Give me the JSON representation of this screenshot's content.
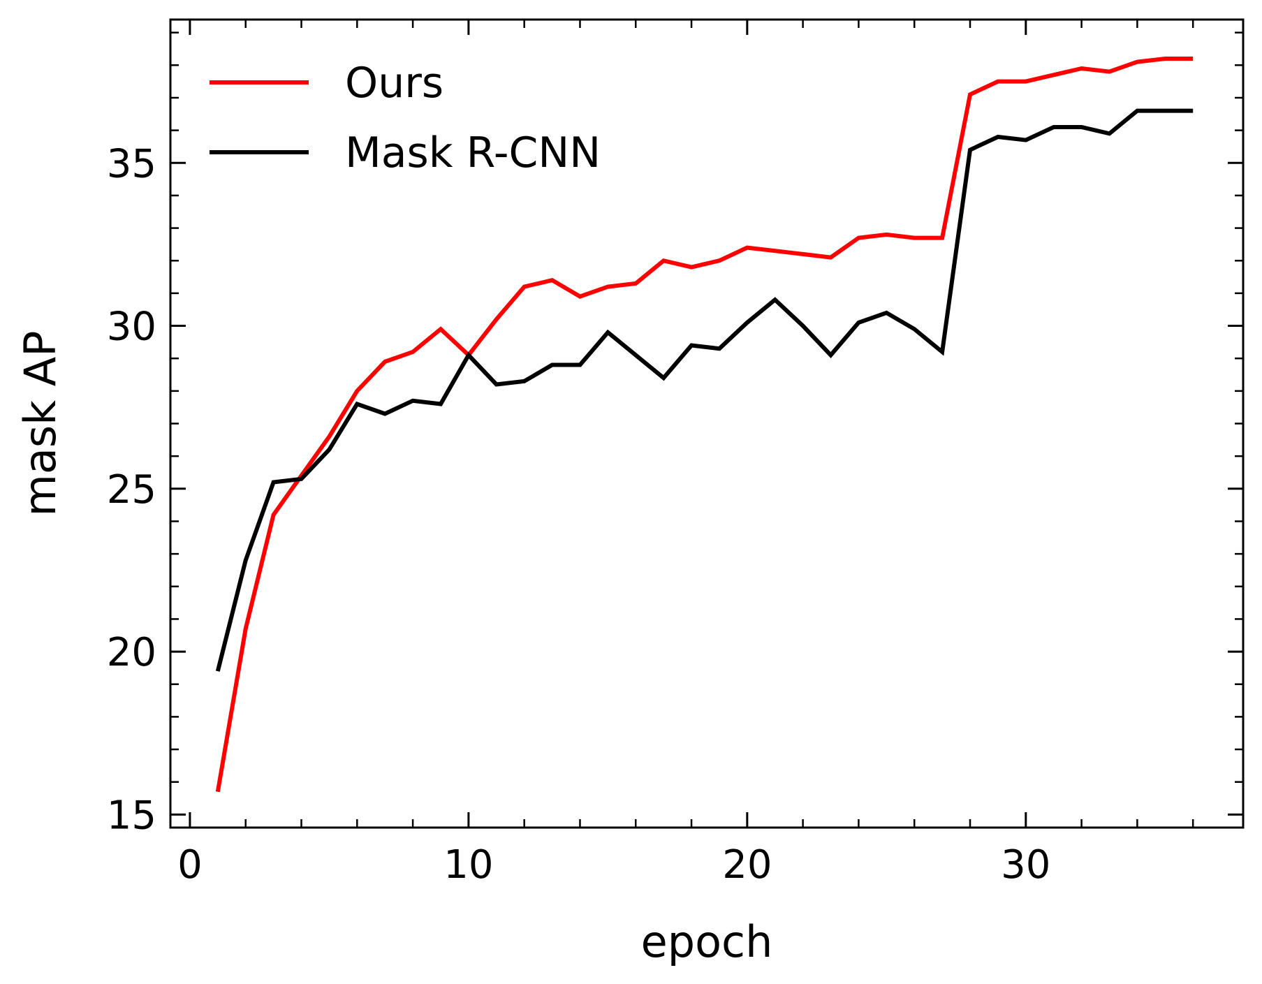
{
  "chart_data": {
    "type": "line",
    "xlabel": "epoch",
    "ylabel": "mask AP",
    "xlim": [
      -0.7,
      37.8
    ],
    "ylim": [
      14.6,
      39.4
    ],
    "x_ticks": [
      0,
      10,
      20,
      30
    ],
    "y_ticks": [
      15,
      20,
      25,
      30,
      35
    ],
    "x_minor_step": 2,
    "y_minor_step": 1,
    "grid": false,
    "legend_position": "top-left",
    "x": [
      1,
      2,
      3,
      4,
      5,
      6,
      7,
      8,
      9,
      10,
      11,
      12,
      13,
      14,
      15,
      16,
      17,
      18,
      19,
      20,
      21,
      22,
      23,
      24,
      25,
      26,
      27,
      28,
      29,
      30,
      31,
      32,
      33,
      34,
      35,
      36
    ],
    "series": [
      {
        "name": "Ours",
        "color": "#ff0000",
        "values": [
          15.7,
          20.7,
          24.2,
          25.4,
          26.6,
          28.0,
          28.9,
          29.2,
          29.9,
          29.1,
          30.2,
          31.2,
          31.4,
          30.9,
          31.2,
          31.3,
          32.0,
          31.8,
          32.0,
          32.4,
          32.3,
          32.2,
          32.1,
          32.7,
          32.8,
          32.7,
          32.7,
          37.1,
          37.5,
          37.5,
          37.7,
          37.9,
          37.8,
          38.1,
          38.2,
          38.2
        ]
      },
      {
        "name": "Mask R-CNN",
        "color": "#000000",
        "values": [
          19.4,
          22.8,
          25.2,
          25.3,
          26.2,
          27.6,
          27.3,
          27.7,
          27.6,
          29.1,
          28.2,
          28.3,
          28.8,
          28.8,
          29.8,
          29.1,
          28.4,
          29.4,
          29.3,
          30.1,
          30.8,
          30.0,
          29.1,
          30.1,
          30.4,
          29.9,
          29.2,
          35.4,
          35.8,
          35.7,
          36.1,
          36.1,
          35.9,
          36.6,
          36.6,
          36.6
        ]
      }
    ]
  }
}
